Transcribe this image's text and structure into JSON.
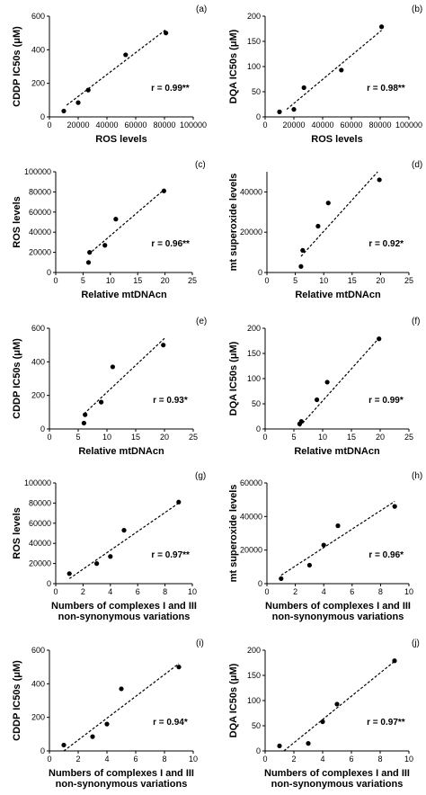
{
  "chart_data": [
    {
      "panel": "(a)",
      "type": "scatter",
      "xlabel": [
        "ROS levels"
      ],
      "ylabel": "CDDP IC50s (μM)",
      "xlim": [
        0,
        100000
      ],
      "ylim": [
        0,
        600
      ],
      "xticks": [
        0,
        20000,
        40000,
        60000,
        80000,
        100000
      ],
      "yticks": [
        0,
        200,
        400,
        600
      ],
      "x": [
        10000,
        20000,
        27000,
        53000,
        81000
      ],
      "y": [
        35,
        85,
        160,
        370,
        500
      ],
      "fit": [
        [
          12000,
          70
        ],
        [
          81000,
          520
        ]
      ],
      "r_label": "r = 0.99**"
    },
    {
      "panel": "(b)",
      "type": "scatter",
      "xlabel": [
        "ROS levels"
      ],
      "ylabel": "DQA IC50s (μM)",
      "xlim": [
        0,
        100000
      ],
      "ylim": [
        0,
        200
      ],
      "xticks": [
        0,
        20000,
        40000,
        60000,
        80000,
        100000
      ],
      "yticks": [
        0,
        50,
        100,
        150,
        200
      ],
      "x": [
        10000,
        20000,
        27000,
        53000,
        81000
      ],
      "y": [
        10,
        15,
        58,
        93,
        179
      ],
      "fit": [
        [
          15000,
          15
        ],
        [
          81000,
          172
        ]
      ],
      "r_label": "r = 0.98**"
    },
    {
      "panel": "(c)",
      "type": "scatter",
      "xlabel": [
        "Relative mtDNAcn"
      ],
      "ylabel": "ROS levels",
      "xlim": [
        0,
        25
      ],
      "ylim": [
        0,
        100000
      ],
      "xticks": [
        0,
        5,
        10,
        15,
        20,
        25
      ],
      "yticks": [
        0,
        20000,
        40000,
        60000,
        80000,
        100000
      ],
      "x": [
        6,
        6.2,
        9,
        11,
        19.8
      ],
      "y": [
        10000,
        20000,
        27000,
        53000,
        81000
      ],
      "fit": [
        [
          6,
          18000
        ],
        [
          20,
          83000
        ]
      ],
      "r_label": "r = 0.96**"
    },
    {
      "panel": "(d)",
      "type": "scatter",
      "xlabel": [
        "Relative mtDNAcn"
      ],
      "ylabel": "mt superoxide levels",
      "xlim": [
        0,
        25
      ],
      "ylim": [
        0,
        50000
      ],
      "xticks": [
        0,
        5,
        10,
        15,
        20,
        25
      ],
      "yticks": [
        0,
        20000,
        40000
      ],
      "x": [
        6,
        6.3,
        9,
        10.8,
        19.8
      ],
      "y": [
        3000,
        11000,
        23000,
        34500,
        46000
      ],
      "fit": [
        [
          6,
          8000
        ],
        [
          19.5,
          50000
        ]
      ],
      "r_label": "r = 0.92*"
    },
    {
      "panel": "(e)",
      "type": "scatter",
      "xlabel": [
        "Relative mtDNAcn"
      ],
      "ylabel": "CDDP IC50s (μM)",
      "xlim": [
        0,
        25
      ],
      "ylim": [
        0,
        600
      ],
      "xticks": [
        0,
        5,
        10,
        15,
        20,
        25
      ],
      "yticks": [
        0,
        200,
        400,
        600
      ],
      "x": [
        6,
        6.2,
        9,
        11,
        19.8
      ],
      "y": [
        35,
        85,
        160,
        370,
        500
      ],
      "fit": [
        [
          6,
          90
        ],
        [
          20,
          540
        ]
      ],
      "r_label": "r = 0.93*"
    },
    {
      "panel": "(f)",
      "type": "scatter",
      "xlabel": [
        "Relative mtDNAcn"
      ],
      "ylabel": "DQA IC50s (μM)",
      "xlim": [
        0,
        25
      ],
      "ylim": [
        0,
        200
      ],
      "xticks": [
        0,
        5,
        10,
        15,
        20,
        25
      ],
      "yticks": [
        0,
        50,
        100,
        150,
        200
      ],
      "x": [
        6,
        6.3,
        9,
        10.8,
        19.8
      ],
      "y": [
        10,
        15,
        58,
        93,
        179
      ],
      "fit": [
        [
          6,
          5
        ],
        [
          20,
          183
        ]
      ],
      "r_label": "r = 0.99*"
    },
    {
      "panel": "(g)",
      "type": "scatter",
      "xlabel": [
        "Numbers of complexes I and III",
        "non-synonymous variations"
      ],
      "ylabel": "ROS levels",
      "xlim": [
        0,
        10
      ],
      "ylim": [
        0,
        100000
      ],
      "xticks": [
        0,
        2,
        4,
        6,
        8,
        10
      ],
      "yticks": [
        0,
        20000,
        40000,
        60000,
        80000,
        100000
      ],
      "x": [
        1,
        3,
        4,
        5,
        9
      ],
      "y": [
        10000,
        20000,
        27000,
        53000,
        81000
      ],
      "fit": [
        [
          1,
          5000
        ],
        [
          9,
          80000
        ]
      ],
      "r_label": "r = 0.97**"
    },
    {
      "panel": "(h)",
      "type": "scatter",
      "xlabel": [
        "Numbers of complexes I and III",
        "non-synonymous variations"
      ],
      "ylabel": "mt superoxide levels",
      "xlim": [
        0,
        10
      ],
      "ylim": [
        0,
        60000
      ],
      "xticks": [
        0,
        2,
        4,
        6,
        8,
        10
      ],
      "yticks": [
        0,
        20000,
        40000,
        60000
      ],
      "x": [
        1,
        3,
        4,
        5,
        9
      ],
      "y": [
        3000,
        11000,
        23000,
        34500,
        46000
      ],
      "fit": [
        [
          1,
          5000
        ],
        [
          9,
          49000
        ]
      ],
      "r_label": "r = 0.96*"
    },
    {
      "panel": "(i)",
      "type": "scatter",
      "xlabel": [
        "Numbers of complexes I and III",
        "non-synonymous variations"
      ],
      "ylabel": "CDDP IC50s (μM)",
      "xlim": [
        0,
        10
      ],
      "ylim": [
        0,
        600
      ],
      "xticks": [
        0,
        2,
        4,
        6,
        8,
        10
      ],
      "yticks": [
        0,
        200,
        400,
        600
      ],
      "x": [
        1,
        3,
        4,
        5,
        9
      ],
      "y": [
        35,
        85,
        160,
        370,
        500
      ],
      "fit": [
        [
          1,
          0
        ],
        [
          9,
          520
        ]
      ],
      "r_label": "r = 0.94*"
    },
    {
      "panel": "(j)",
      "type": "scatter",
      "xlabel": [
        "Numbers of complexes I and III",
        "non-synonymous variations"
      ],
      "ylabel": "DQA IC50s (μM)",
      "xlim": [
        0,
        10
      ],
      "ylim": [
        0,
        200
      ],
      "xticks": [
        0,
        2,
        4,
        6,
        8,
        10
      ],
      "yticks": [
        0,
        50,
        100,
        150,
        200
      ],
      "x": [
        1,
        3,
        4,
        5,
        9
      ],
      "y": [
        10,
        15,
        58,
        93,
        179
      ],
      "fit": [
        [
          1.3,
          0
        ],
        [
          9,
          178
        ]
      ],
      "r_label": "r = 0.97**"
    }
  ]
}
